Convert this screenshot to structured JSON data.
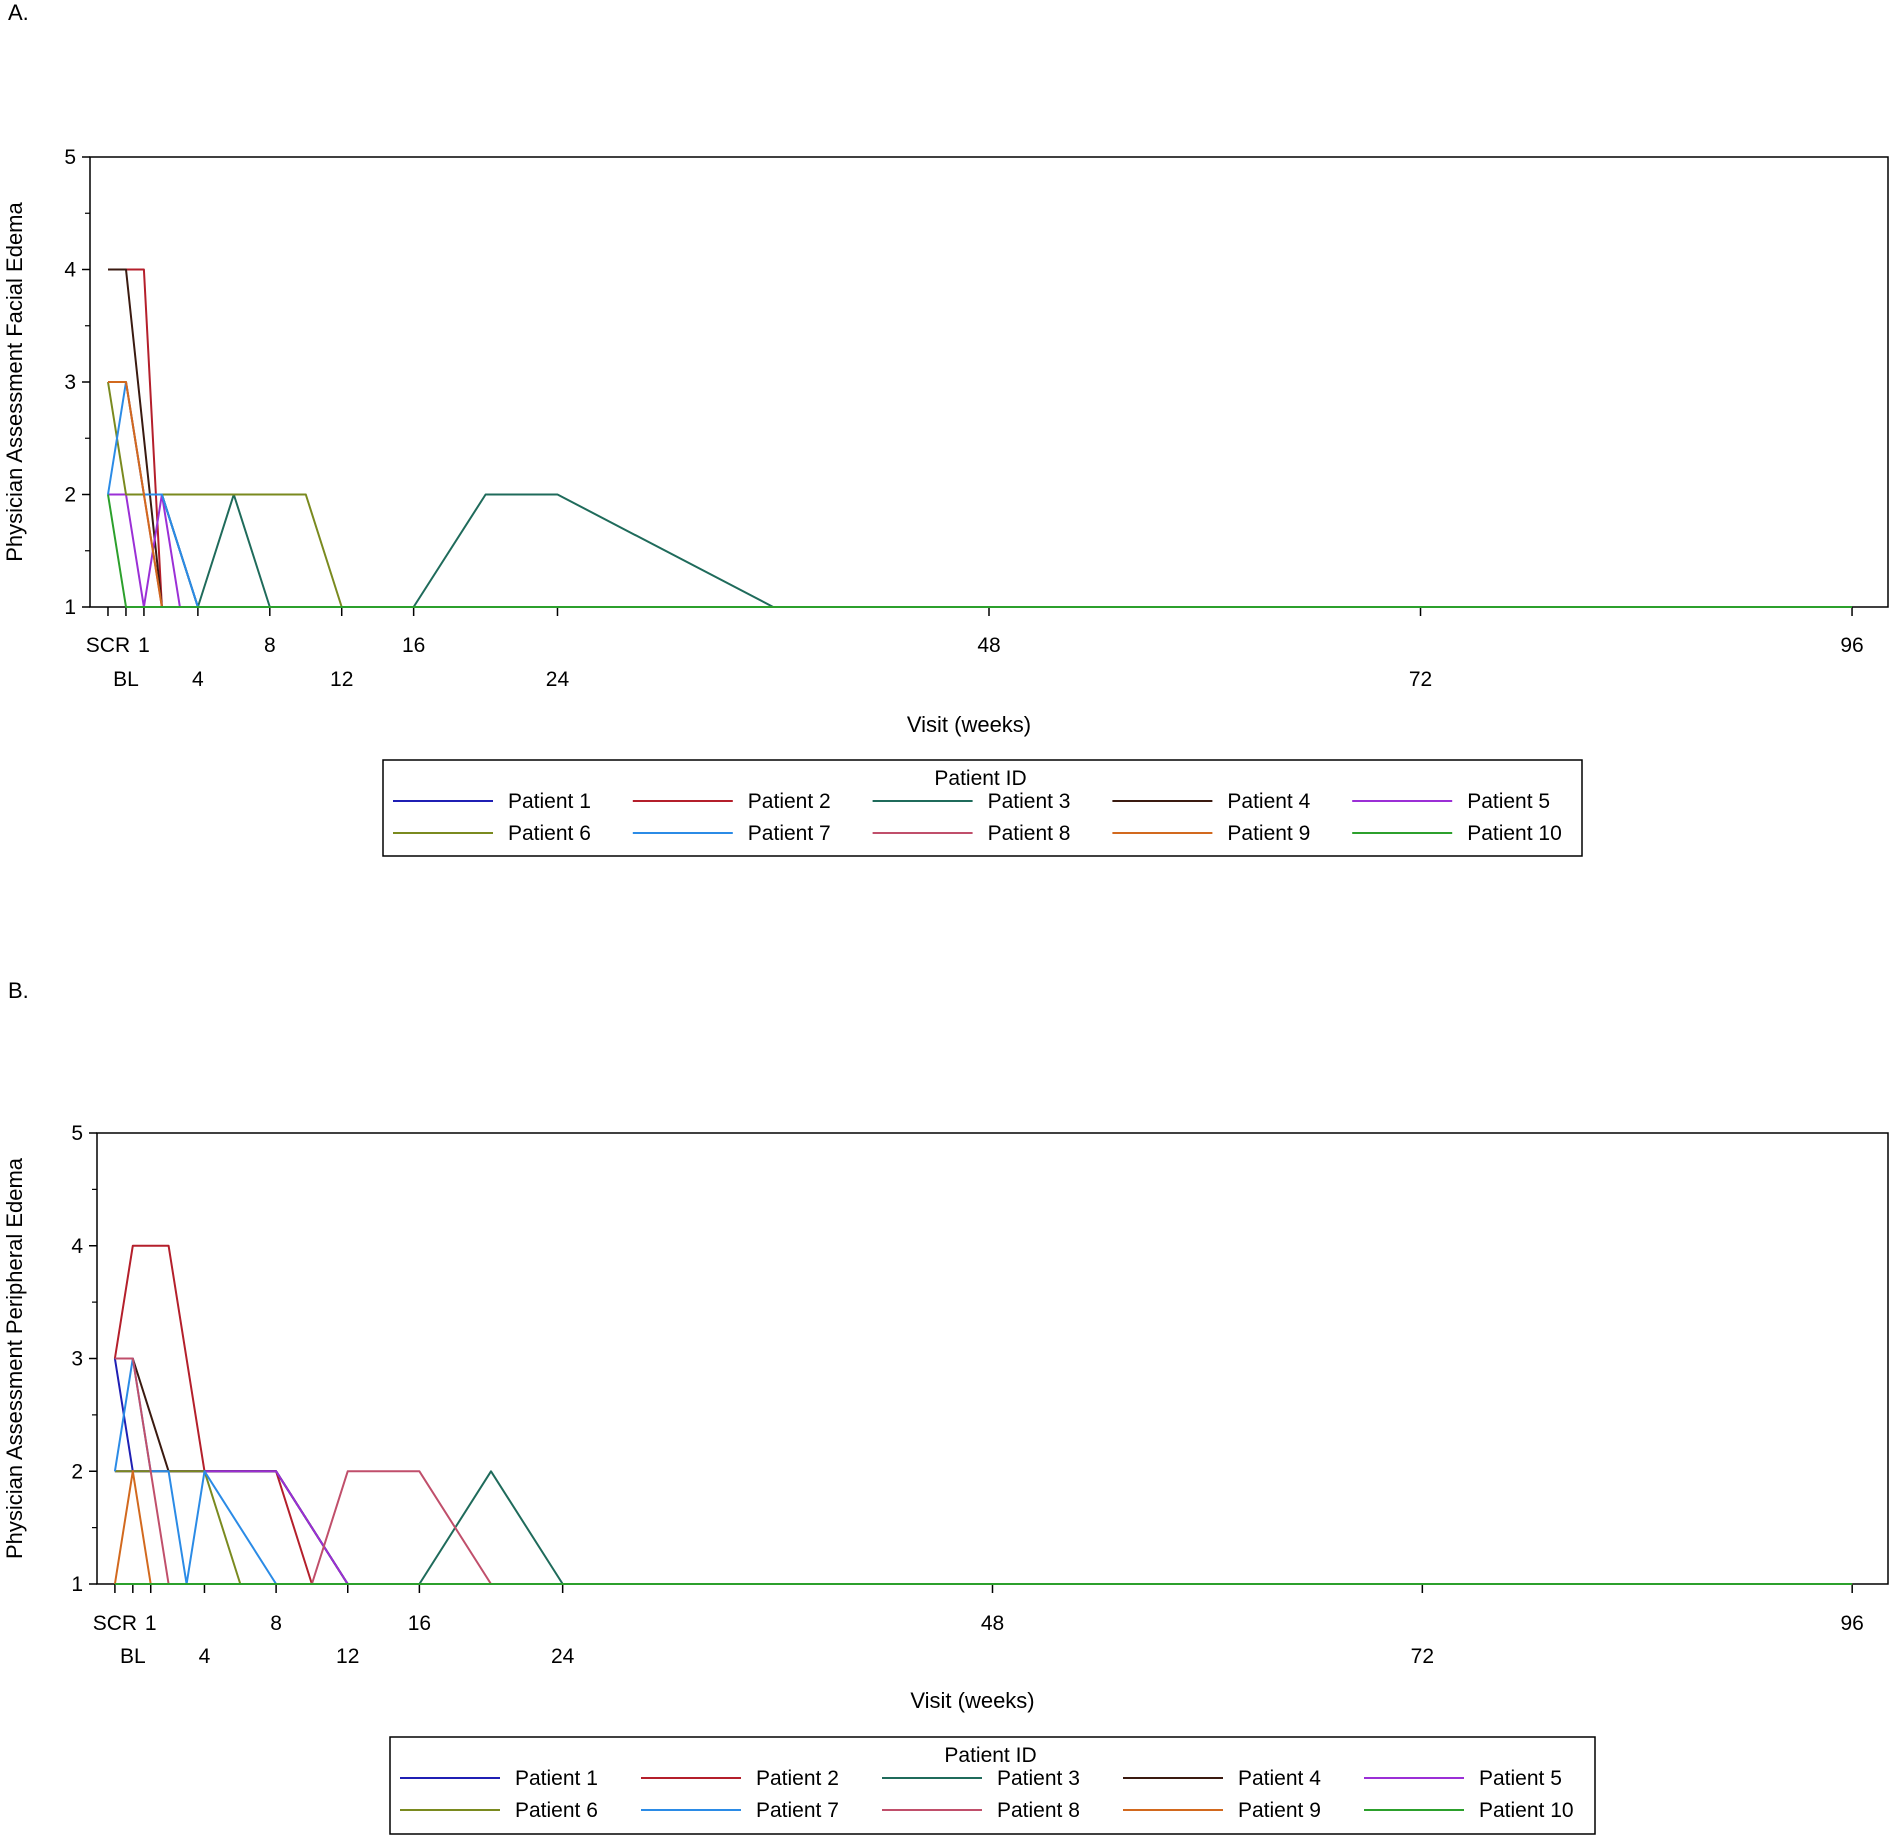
{
  "panels": [
    {
      "label": "A.",
      "ylabel": "Physician Assessment Facial Edema",
      "xlabel": "Visit (weeks)",
      "legend_title": "Patient ID"
    },
    {
      "label": "B.",
      "ylabel": "Physician Assessment Peripheral Edema",
      "xlabel": "Visit (weeks)",
      "legend_title": "Patient ID"
    }
  ],
  "chart_data": [
    {
      "type": "line",
      "title": "",
      "xlabel": "Visit (weeks)",
      "ylabel": "Physician Assessment Facial Edema",
      "ylim": [
        1,
        5
      ],
      "yticks": [
        1,
        2,
        3,
        4,
        5
      ],
      "xticks": [
        {
          "label": "SCR",
          "value": -1,
          "row": 1
        },
        {
          "label": "BL",
          "value": 0,
          "row": 2
        },
        {
          "label": "1",
          "value": 1,
          "row": 1
        },
        {
          "label": "4",
          "value": 4,
          "row": 2
        },
        {
          "label": "8",
          "value": 8,
          "row": 1
        },
        {
          "label": "12",
          "value": 12,
          "row": 2
        },
        {
          "label": "16",
          "value": 16,
          "row": 1
        },
        {
          "label": "24",
          "value": 24,
          "row": 2
        },
        {
          "label": "48",
          "value": 48,
          "row": 1
        },
        {
          "label": "72",
          "value": 72,
          "row": 2
        },
        {
          "label": "96",
          "value": 96,
          "row": 1
        }
      ],
      "xlim": [
        -2,
        98
      ],
      "grid": false,
      "legend_position": "bottom",
      "series": [
        {
          "name": "Patient 1",
          "color": "#1f1fb4",
          "x": [
            -1,
            0,
            1,
            2,
            4,
            8,
            12,
            16,
            24,
            48,
            72,
            96
          ],
          "y": [
            2,
            2,
            2,
            2,
            1,
            1,
            1,
            1,
            1,
            1,
            1,
            1
          ]
        },
        {
          "name": "Patient 2",
          "color": "#b41f2b",
          "x": [
            -1,
            0,
            1,
            2,
            4,
            8,
            12,
            16,
            24,
            48,
            72,
            96
          ],
          "y": [
            4,
            4,
            4,
            1,
            1,
            1,
            1,
            1,
            1,
            1,
            1,
            1
          ]
        },
        {
          "name": "Patient 3",
          "color": "#1f6b5b",
          "x": [
            -1,
            0,
            1,
            2,
            4,
            6,
            8,
            12,
            16,
            20,
            24,
            36,
            48,
            72,
            96
          ],
          "y": [
            2,
            2,
            2,
            2,
            1,
            2,
            1,
            1,
            1,
            2,
            2,
            1,
            1,
            1,
            1
          ]
        },
        {
          "name": "Patient 4",
          "color": "#3a1a10",
          "x": [
            -1,
            0,
            2,
            4,
            8,
            12,
            16,
            24,
            48,
            72,
            84,
            96
          ],
          "y": [
            4,
            4,
            1,
            1,
            1,
            1,
            1,
            1,
            1,
            1,
            1,
            1
          ]
        },
        {
          "name": "Patient 5",
          "color": "#9b2fd6",
          "x": [
            -1,
            0,
            1,
            2,
            3,
            4,
            8,
            12,
            16,
            24,
            48,
            72,
            96
          ],
          "y": [
            2,
            2,
            1,
            2,
            1,
            1,
            1,
            1,
            1,
            1,
            1,
            1,
            1
          ]
        },
        {
          "name": "Patient 6",
          "color": "#7a8a1f",
          "x": [
            -1,
            0,
            2,
            4,
            8,
            10,
            12,
            16,
            24,
            48,
            72,
            96
          ],
          "y": [
            3,
            2,
            2,
            2,
            2,
            2,
            1,
            1,
            1,
            1,
            1,
            1
          ]
        },
        {
          "name": "Patient 7",
          "color": "#2b8be6",
          "x": [
            -1,
            0,
            1,
            2,
            4,
            8,
            12,
            16,
            24,
            48,
            72,
            96
          ],
          "y": [
            2,
            3,
            2,
            2,
            1,
            1,
            1,
            1,
            1,
            1,
            1,
            1
          ]
        },
        {
          "name": "Patient 8",
          "color": "#c04f6b",
          "x": [
            -1,
            0,
            1,
            2,
            4,
            8,
            12,
            16,
            24,
            48,
            72,
            96
          ],
          "y": [
            3,
            3,
            2,
            1,
            1,
            1,
            1,
            1,
            1,
            1,
            1,
            1
          ]
        },
        {
          "name": "Patient 9",
          "color": "#d2691e",
          "x": [
            -1,
            0,
            2,
            4,
            8,
            12,
            16,
            24,
            48,
            72,
            96
          ],
          "y": [
            3,
            3,
            1,
            1,
            1,
            1,
            1,
            1,
            1,
            1,
            1
          ]
        },
        {
          "name": "Patient 10",
          "color": "#2ca02c",
          "x": [
            -1,
            0,
            1,
            4,
            8,
            12,
            16,
            24,
            48,
            72,
            96
          ],
          "y": [
            2,
            1,
            1,
            1,
            1,
            1,
            1,
            1,
            1,
            1,
            1
          ]
        }
      ]
    },
    {
      "type": "line",
      "title": "",
      "xlabel": "Visit (weeks)",
      "ylabel": "Physician Assessment Peripheral Edema",
      "ylim": [
        1,
        5
      ],
      "yticks": [
        1,
        2,
        3,
        4,
        5
      ],
      "xticks": [
        {
          "label": "SCR",
          "value": -1,
          "row": 1
        },
        {
          "label": "BL",
          "value": 0,
          "row": 2
        },
        {
          "label": "1",
          "value": 1,
          "row": 1
        },
        {
          "label": "4",
          "value": 4,
          "row": 2
        },
        {
          "label": "8",
          "value": 8,
          "row": 1
        },
        {
          "label": "12",
          "value": 12,
          "row": 2
        },
        {
          "label": "16",
          "value": 16,
          "row": 1
        },
        {
          "label": "24",
          "value": 24,
          "row": 2
        },
        {
          "label": "48",
          "value": 48,
          "row": 1
        },
        {
          "label": "72",
          "value": 72,
          "row": 2
        },
        {
          "label": "96",
          "value": 96,
          "row": 1
        }
      ],
      "xlim": [
        -2,
        98
      ],
      "grid": false,
      "legend_position": "bottom",
      "series": [
        {
          "name": "Patient 1",
          "color": "#1f1fb4",
          "x": [
            -1,
            0,
            1,
            2,
            4,
            8,
            12,
            16,
            24,
            48,
            72,
            96
          ],
          "y": [
            3,
            2,
            2,
            2,
            2,
            2,
            1,
            1,
            1,
            1,
            1,
            1
          ]
        },
        {
          "name": "Patient 2",
          "color": "#b41f2b",
          "x": [
            -1,
            0,
            1,
            2,
            4,
            8,
            10,
            12,
            16,
            24,
            48,
            72,
            96
          ],
          "y": [
            3,
            4,
            4,
            4,
            2,
            2,
            1,
            1,
            1,
            1,
            1,
            1,
            1
          ]
        },
        {
          "name": "Patient 3",
          "color": "#1f6b5b",
          "x": [
            -1,
            0,
            4,
            8,
            12,
            16,
            20,
            24,
            48,
            72,
            96
          ],
          "y": [
            2,
            2,
            2,
            2,
            1,
            1,
            2,
            1,
            1,
            1,
            1
          ]
        },
        {
          "name": "Patient 4",
          "color": "#3a1a10",
          "x": [
            -1,
            0,
            2,
            4,
            8,
            12,
            16,
            24,
            48,
            72,
            84,
            96
          ],
          "y": [
            3,
            3,
            2,
            2,
            2,
            1,
            1,
            1,
            1,
            1,
            1,
            1
          ]
        },
        {
          "name": "Patient 5",
          "color": "#9b2fd6",
          "x": [
            -1,
            0,
            1,
            4,
            8,
            12,
            16,
            24,
            48,
            72,
            96
          ],
          "y": [
            2,
            2,
            2,
            2,
            2,
            1,
            1,
            1,
            1,
            1,
            1
          ]
        },
        {
          "name": "Patient 6",
          "color": "#7a8a1f",
          "x": [
            -1,
            0,
            1,
            2,
            4,
            6,
            8,
            12,
            16,
            24,
            48,
            72,
            96
          ],
          "y": [
            2,
            2,
            2,
            2,
            2,
            1,
            1,
            1,
            1,
            1,
            1,
            1,
            1
          ]
        },
        {
          "name": "Patient 7",
          "color": "#2b8be6",
          "x": [
            -1,
            0,
            1,
            2,
            3,
            4,
            8,
            12,
            16,
            24,
            48,
            72,
            96
          ],
          "y": [
            2,
            3,
            2,
            2,
            1,
            2,
            1,
            1,
            1,
            1,
            1,
            1,
            1
          ]
        },
        {
          "name": "Patient 8",
          "color": "#c04f6b",
          "x": [
            -1,
            0,
            1,
            2,
            4,
            8,
            10,
            12,
            16,
            20,
            24,
            48,
            72,
            96
          ],
          "y": [
            3,
            3,
            2,
            1,
            1,
            1,
            1,
            2,
            2,
            1,
            1,
            1,
            1,
            1
          ]
        },
        {
          "name": "Patient 9",
          "color": "#d2691e",
          "x": [
            -1,
            0,
            1,
            4,
            8,
            12,
            16,
            24,
            48,
            72,
            96
          ],
          "y": [
            1,
            2,
            1,
            1,
            1,
            1,
            1,
            1,
            1,
            1,
            1
          ]
        },
        {
          "name": "Patient 10",
          "color": "#2ca02c",
          "x": [
            -1,
            0,
            1,
            4,
            8,
            12,
            16,
            24,
            48,
            72,
            96
          ],
          "y": [
            1,
            1,
            1,
            1,
            1,
            1,
            1,
            1,
            1,
            1,
            1
          ]
        }
      ]
    }
  ]
}
